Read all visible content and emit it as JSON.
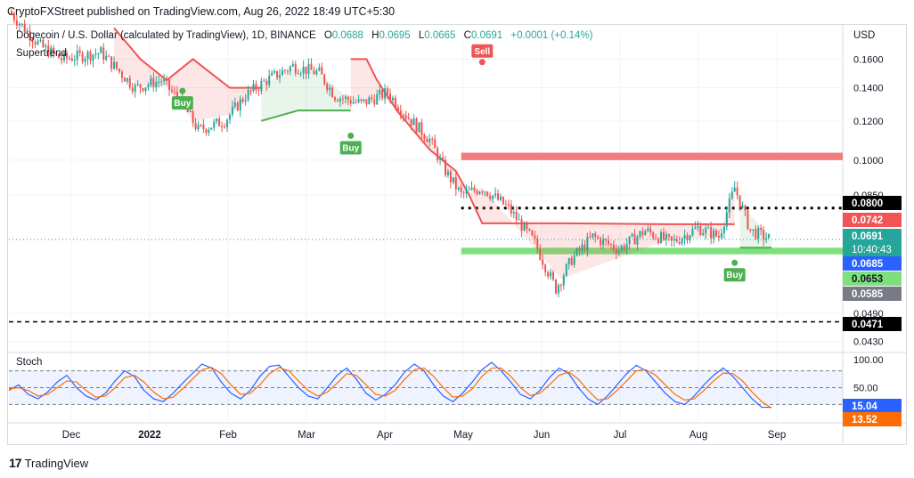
{
  "header": {
    "published": "CryptoFXStreet published on TradingView.com, Aug 26, 2022 18:49 UTC+5:30"
  },
  "legend": {
    "title": "Dogecoin / U.S. Dollar (calculated by TradingView), 1D, BINANCE",
    "o_label": "O",
    "o": "0.0688",
    "h_label": "H",
    "h": "0.0695",
    "l_label": "L",
    "l": "0.0665",
    "c_label": "C",
    "c": "0.0691",
    "change": "+0.0001 (+0.14%)",
    "indicator": "Supertrend",
    "oscillator": "Stoch"
  },
  "axis": {
    "currency": "USD"
  },
  "footer": {
    "brand": "TradingView"
  },
  "colors": {
    "up": "#26a69a",
    "down": "#ef5350",
    "st_up": "#4caf50",
    "st_down": "#f05454",
    "resistance_zone": "#f07c7c",
    "support_zone": "#7de07d",
    "stoch_k": "#2962ff",
    "stoch_d": "#ff6d00"
  },
  "chart_data": [
    {
      "type": "candlestick",
      "title": "Dogecoin / U.S. Dollar (calculated by TradingView), 1D, BINANCE",
      "scale": "log",
      "ylim": [
        0.041,
        0.18
      ],
      "x_ticks": [
        "Dec",
        "2022",
        "Feb",
        "Mar",
        "Apr",
        "May",
        "Jun",
        "Jul",
        "Aug",
        "Sep"
      ],
      "y_ticks": [
        "0.1600",
        "0.1400",
        "0.1200",
        "0.1000",
        "0.0850",
        "0.0490",
        "0.0430"
      ],
      "price_labels": [
        {
          "text": "0.0800",
          "value": 0.08,
          "style": "black"
        },
        {
          "text": "0.0742",
          "value": 0.0742,
          "style": "red"
        },
        {
          "text": "0.0691",
          "value": 0.0691,
          "style": "green"
        },
        {
          "text": "10:40:43",
          "value": 0.0691,
          "style": "green-sub"
        },
        {
          "text": "0.0685",
          "value": 0.0685,
          "style": "blue"
        },
        {
          "text": "0.0653",
          "value": 0.0653,
          "style": "lime"
        },
        {
          "text": "0.0585",
          "value": 0.0585,
          "style": "gray"
        },
        {
          "text": "0.0471",
          "value": 0.0471,
          "style": "black"
        }
      ],
      "close_path": [
        [
          0,
          0.2
        ],
        [
          12,
          0.17
        ],
        [
          20,
          0.16
        ],
        [
          35,
          0.165
        ],
        [
          48,
          0.14
        ],
        [
          58,
          0.145
        ],
        [
          66,
          0.13
        ],
        [
          72,
          0.115
        ],
        [
          82,
          0.12
        ],
        [
          90,
          0.135
        ],
        [
          98,
          0.145
        ],
        [
          108,
          0.155
        ],
        [
          118,
          0.15
        ],
        [
          124,
          0.135
        ],
        [
          134,
          0.13
        ],
        [
          144,
          0.137
        ],
        [
          150,
          0.125
        ],
        [
          160,
          0.11
        ],
        [
          166,
          0.095
        ],
        [
          172,
          0.085
        ],
        [
          180,
          0.088
        ],
        [
          190,
          0.08
        ],
        [
          200,
          0.068
        ],
        [
          208,
          0.055
        ],
        [
          214,
          0.063
        ],
        [
          222,
          0.07
        ],
        [
          232,
          0.066
        ],
        [
          242,
          0.072
        ],
        [
          252,
          0.068
        ],
        [
          262,
          0.073
        ],
        [
          270,
          0.07
        ],
        [
          276,
          0.088
        ],
        [
          282,
          0.072
        ],
        [
          290,
          0.0691
        ]
      ],
      "supertrend": [
        {
          "dir": "down",
          "points": [
            [
              40,
              0.185
            ],
            [
              50,
              0.16
            ],
            [
              60,
              0.145
            ],
            [
              70,
              0.16
            ],
            [
              84,
              0.14
            ],
            [
              96,
              0.14
            ]
          ]
        },
        {
          "dir": "up",
          "points": [
            [
              96,
              0.12
            ],
            [
              110,
              0.126
            ],
            [
              118,
              0.126
            ],
            [
              130,
              0.126
            ]
          ]
        },
        {
          "dir": "down",
          "points": [
            [
              130,
              0.16
            ],
            [
              136,
              0.16
            ],
            [
              140,
              0.145
            ],
            [
              148,
              0.125
            ],
            [
              160,
              0.105
            ],
            [
              170,
              0.095
            ],
            [
              175,
              0.085
            ],
            [
              180,
              0.0745
            ],
            [
              210,
              0.0745
            ],
            [
              250,
              0.0742
            ],
            [
              270,
              0.0742
            ],
            [
              276,
              0.0742
            ]
          ]
        },
        {
          "dir": "up",
          "points": [
            [
              278,
              0.0665
            ],
            [
              290,
              0.0665
            ]
          ]
        }
      ],
      "signals": [
        {
          "label": "Buy",
          "at": 66,
          "value": 0.138
        },
        {
          "label": "Buy",
          "at": 130,
          "value": 0.112
        },
        {
          "label": "Sell",
          "at": 180,
          "value": 0.17
        },
        {
          "label": "Buy",
          "at": 276,
          "value": 0.062
        }
      ],
      "zones": [
        {
          "name": "resistance",
          "from": 0.1,
          "to": 0.1035,
          "x_from": 172
        },
        {
          "name": "support",
          "from": 0.0645,
          "to": 0.0665,
          "x_from": 172
        }
      ],
      "levels": [
        {
          "value": 0.08,
          "style": "dotted",
          "x_from": 172
        },
        {
          "value": 0.0471,
          "style": "dashed",
          "x_from": 0
        }
      ]
    },
    {
      "type": "line",
      "title": "Stoch",
      "ylim": [
        0,
        100
      ],
      "y_ticks": [
        "100.00",
        "50.00"
      ],
      "bands": [
        20,
        80
      ],
      "last_k": "15.04",
      "last_d": "13.52",
      "series": [
        {
          "name": "%K",
          "values": [
            45,
            55,
            38,
            30,
            42,
            60,
            72,
            50,
            35,
            28,
            40,
            62,
            80,
            70,
            45,
            30,
            25,
            40,
            58,
            75,
            92,
            85,
            60,
            40,
            30,
            45,
            70,
            88,
            90,
            70,
            50,
            35,
            30,
            50,
            72,
            85,
            65,
            40,
            28,
            38,
            55,
            78,
            92,
            80,
            55,
            35,
            25,
            40,
            60,
            82,
            95,
            80,
            60,
            38,
            30,
            45,
            68,
            85,
            75,
            50,
            30,
            20,
            35,
            55,
            75,
            90,
            80,
            60,
            40,
            25,
            20,
            35,
            55,
            72,
            85,
            70,
            50,
            30,
            15,
            15
          ]
        },
        {
          "name": "%D",
          "values": [
            48,
            50,
            45,
            35,
            38,
            50,
            62,
            60,
            45,
            33,
            35,
            50,
            68,
            72,
            60,
            42,
            30,
            33,
            48,
            65,
            82,
            86,
            75,
            55,
            38,
            40,
            55,
            75,
            86,
            80,
            62,
            45,
            35,
            42,
            58,
            75,
            72,
            55,
            38,
            35,
            45,
            65,
            82,
            85,
            70,
            50,
            33,
            35,
            48,
            70,
            85,
            85,
            70,
            50,
            36,
            40,
            55,
            72,
            78,
            65,
            45,
            28,
            30,
            45,
            62,
            80,
            82,
            72,
            55,
            38,
            28,
            30,
            45,
            62,
            76,
            75,
            62,
            42,
            25,
            13.52
          ]
        }
      ]
    }
  ]
}
